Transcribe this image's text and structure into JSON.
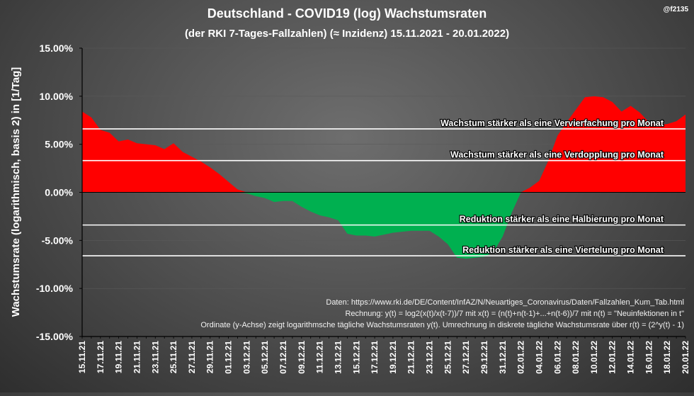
{
  "handle": "@f2135",
  "colors": {
    "positive": "#ff0000",
    "negative": "#00b050",
    "reference_line": "#ffffff",
    "axis": "#000000"
  },
  "chart_data": {
    "type": "area",
    "title": "Deutschland - COVID19  (log) Wachstumsraten",
    "subtitle": "(der RKI 7-Tages-Fallzahlen) (≈ Inzidenz) 15.11.2021 - 20.01.2022)",
    "ylabel": "Wachstumsrate (logarithmisch, basis 2) in [1/Tag]",
    "xlabel": "",
    "ylim": [
      -15,
      15
    ],
    "yticks": [
      15,
      10,
      5,
      0,
      -5,
      -10,
      -15
    ],
    "ytick_labels": [
      "15.00%",
      "10.00%",
      "5.00%",
      "0.00%",
      "-5.00%",
      "-10.00%",
      "-15.00%"
    ],
    "x_tick_labels": [
      "15.11.21",
      "17.11.21",
      "19.11.21",
      "21.11.21",
      "23.11.21",
      "25.11.21",
      "27.11.21",
      "29.11.21",
      "01.12.21",
      "03.12.21",
      "05.12.21",
      "07.12.21",
      "09.12.21",
      "11.12.21",
      "13.12.21",
      "15.12.21",
      "17.12.21",
      "19.12.21",
      "21.12.21",
      "23.12.21",
      "25.12.21",
      "27.12.21",
      "29.12.21",
      "31.12.21",
      "02.01.22",
      "04.01.22",
      "06.01.22",
      "08.01.22",
      "10.01.22",
      "12.01.22",
      "14.01.22",
      "16.01.22",
      "18.01.22",
      "20.01.22"
    ],
    "x": [
      "15.11.21",
      "16.11.21",
      "17.11.21",
      "18.11.21",
      "19.11.21",
      "20.11.21",
      "21.11.21",
      "22.11.21",
      "23.11.21",
      "24.11.21",
      "25.11.21",
      "26.11.21",
      "27.11.21",
      "28.11.21",
      "29.11.21",
      "30.11.21",
      "01.12.21",
      "02.12.21",
      "03.12.21",
      "04.12.21",
      "05.12.21",
      "06.12.21",
      "07.12.21",
      "08.12.21",
      "09.12.21",
      "10.12.21",
      "11.12.21",
      "12.12.21",
      "13.12.21",
      "14.12.21",
      "15.12.21",
      "16.12.21",
      "17.12.21",
      "18.12.21",
      "19.12.21",
      "20.12.21",
      "21.12.21",
      "22.12.21",
      "23.12.21",
      "24.12.21",
      "25.12.21",
      "26.12.21",
      "27.12.21",
      "28.12.21",
      "29.12.21",
      "30.12.21",
      "31.12.21",
      "01.01.22",
      "02.01.22",
      "03.01.22",
      "04.01.22",
      "05.01.22",
      "06.01.22",
      "07.01.22",
      "08.01.22",
      "09.01.22",
      "10.01.22",
      "11.01.22",
      "12.01.22",
      "13.01.22",
      "14.01.22",
      "15.01.22",
      "16.01.22",
      "17.01.22",
      "18.01.22",
      "19.01.22",
      "20.01.22"
    ],
    "series": [
      {
        "values": [
          8.4,
          7.8,
          6.5,
          6.2,
          5.3,
          5.5,
          5.1,
          5.0,
          4.9,
          4.5,
          5.1,
          4.2,
          3.7,
          3.2,
          2.6,
          1.9,
          1.1,
          0.3,
          -0.1,
          -0.4,
          -0.6,
          -1.0,
          -0.9,
          -0.9,
          -1.5,
          -2.0,
          -2.4,
          -2.6,
          -2.9,
          -4.3,
          -4.5,
          -4.5,
          -4.6,
          -4.4,
          -4.2,
          -4.1,
          -4.0,
          -4.0,
          -4.0,
          -4.6,
          -5.4,
          -6.8,
          -6.9,
          -6.8,
          -6.7,
          -6.2,
          -4.6,
          -2.1,
          0.0,
          0.5,
          1.2,
          3.3,
          5.9,
          7.3,
          8.6,
          9.9,
          10.0,
          9.9,
          9.4,
          8.4,
          9.0,
          8.3,
          7.3,
          7.0,
          7.1,
          7.4,
          8.1
        ],
        "color_positive": "#ff0000",
        "color_negative": "#00b050"
      }
    ],
    "reference_lines": [
      {
        "value": 6.6,
        "label": "Wachstum stärker als eine Vervierfachung pro Monat"
      },
      {
        "value": 3.3,
        "label": "Wachstum stärker als eine Verdopplung pro Monat"
      },
      {
        "value": -3.4,
        "label": "Reduktion stärker als eine Halbierung pro Monat"
      },
      {
        "value": -6.6,
        "label": "Reduktion stärker als eine Viertelung pro Monat"
      }
    ],
    "annotations": [
      "Daten: https://www.rki.de/DE/Content/InfAZ/N/Neuartiges_Coronavirus/Daten/Fallzahlen_Kum_Tab.html",
      "Rechnung: y(t) = log2(x(t)/x(t-7))/7 mit x(t) = (n(t)+n(t-1)+...+n(t-6))/7 mit n(t) = \"Neuinfektionen in t\"",
      "Ordinate (y-Achse) zeigt logarithmsche tägliche Wachstumsraten y(t). Umrechnung in diskrete tägliche Wachstumsrate über r(t) = (2^y(t) - 1)"
    ],
    "grid": true,
    "legend": "none"
  }
}
